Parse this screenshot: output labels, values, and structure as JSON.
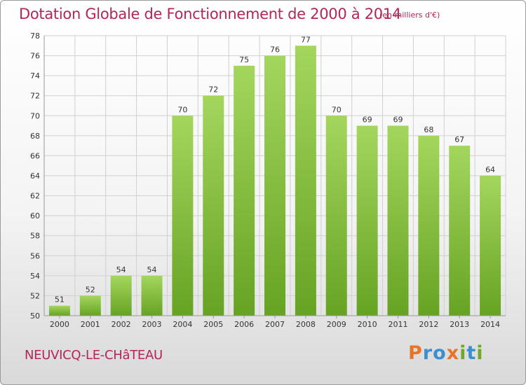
{
  "header": {
    "title": "Dotation Globale de Fonctionnement de 2000 à 2014",
    "unit": "(en milliers d'€)"
  },
  "footer": {
    "commune": "NEUVICQ-LE-CHâTEAU",
    "logo": {
      "text": "Proxiti",
      "letter_colors": [
        "#e8742a",
        "#3b8fd1",
        "#3b8fd1",
        "#e8742a",
        "#6fa82a",
        "#3b8fd1",
        "#6fa82a"
      ]
    }
  },
  "colors": {
    "title": "#b5245a",
    "bar_top": "#a4d65e",
    "bar_bottom": "#66a323",
    "grid": "#d0d0d0",
    "axis_text": "#333333"
  },
  "chart_data": {
    "type": "bar",
    "categories": [
      "2000",
      "2001",
      "2002",
      "2003",
      "2004",
      "2005",
      "2006",
      "2007",
      "2008",
      "2009",
      "2010",
      "2011",
      "2012",
      "2013",
      "2014"
    ],
    "values": [
      51,
      52,
      54,
      54,
      70,
      72,
      75,
      76,
      77,
      70,
      69,
      69,
      68,
      67,
      64
    ],
    "title": "Dotation Globale de Fonctionnement de 2000 à 2014",
    "ylim": [
      50,
      78
    ],
    "yticks": [
      50,
      52,
      54,
      56,
      58,
      60,
      62,
      64,
      66,
      68,
      70,
      72,
      74,
      76,
      78
    ],
    "grid": true,
    "data_labels": true
  }
}
